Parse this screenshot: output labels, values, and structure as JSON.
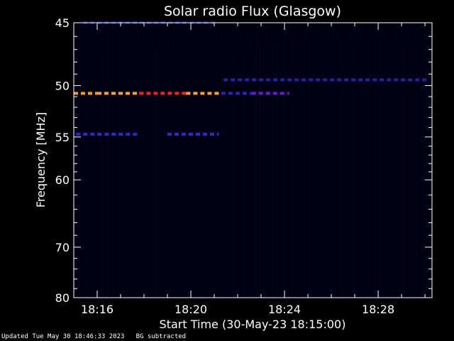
{
  "chart_data": {
    "type": "heatmap",
    "title": "Solar radio Flux (Glasgow)",
    "xlabel": "Start Time (30-May-23 18:15:00)",
    "ylabel": "Frequency [MHz]",
    "x_unit": "minutes after 18:00 UT",
    "xlim": [
      15.0,
      30.3
    ],
    "ylim": [
      80,
      45
    ],
    "x_ticks": [
      {
        "value": 16,
        "label": "18:16"
      },
      {
        "value": 20,
        "label": "18:20"
      },
      {
        "value": 24,
        "label": "18:24"
      },
      {
        "value": 28,
        "label": "18:28"
      }
    ],
    "y_ticks": [
      {
        "value": 45,
        "label": "45"
      },
      {
        "value": 50,
        "label": "50"
      },
      {
        "value": 55,
        "label": "55"
      },
      {
        "value": 60,
        "label": "60"
      },
      {
        "value": 70,
        "label": "70"
      },
      {
        "value": 80,
        "label": "80"
      }
    ],
    "background_color": "#000010",
    "bands": [
      {
        "freq": 45.0,
        "t_start": 15.4,
        "t_end": 21.2,
        "color": "#1a1a80"
      },
      {
        "freq": 49.5,
        "t_start": 21.4,
        "t_end": 30.2,
        "color": "#2222a8"
      },
      {
        "freq": 50.7,
        "t_start": 15.0,
        "t_end": 16.0,
        "color": "#ff9a20"
      },
      {
        "freq": 50.7,
        "t_start": 16.0,
        "t_end": 17.8,
        "color": "#ffa030"
      },
      {
        "freq": 50.7,
        "t_start": 17.8,
        "t_end": 19.8,
        "color": "#ff2020"
      },
      {
        "freq": 50.7,
        "t_start": 19.8,
        "t_end": 21.2,
        "color": "#ffa030"
      },
      {
        "freq": 50.7,
        "t_start": 21.3,
        "t_end": 22.6,
        "color": "#3020c0"
      },
      {
        "freq": 50.7,
        "t_start": 22.6,
        "t_end": 24.2,
        "color": "#6a18d8"
      },
      {
        "freq": 54.7,
        "t_start": 15.1,
        "t_end": 17.8,
        "color": "#2a2ad0"
      },
      {
        "freq": 54.7,
        "t_start": 19.0,
        "t_end": 21.2,
        "color": "#2a2ad0"
      }
    ]
  },
  "footer": {
    "updated": "Updated Tue May 30 18:46:33 2023",
    "note": "BG subtracted"
  }
}
